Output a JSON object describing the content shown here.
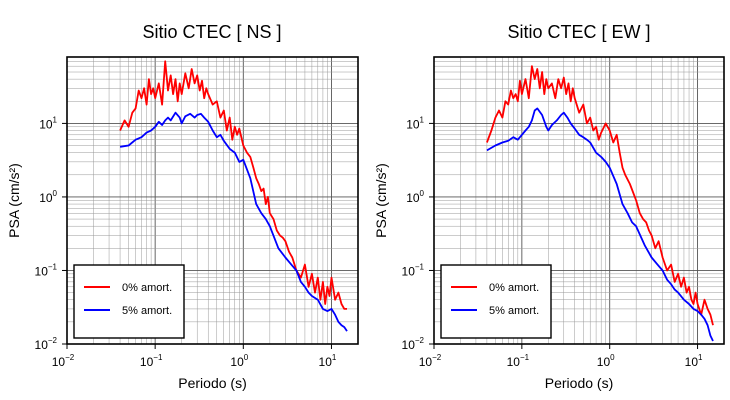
{
  "chart_data": [
    {
      "type": "line",
      "title": "Sitio CTEC [ NS ]",
      "xlabel": "Periodo (s)",
      "ylabel": "PSA (cm/s²)",
      "xscale": "log",
      "yscale": "log",
      "xlim": [
        0.01,
        20
      ],
      "ylim": [
        0.01,
        80
      ],
      "grid": true,
      "legend_position": "bottom-left",
      "xticks": [
        {
          "label": "10",
          "exp": "−2"
        },
        {
          "label": "10",
          "exp": "−1"
        },
        {
          "label": "10",
          "exp": "0"
        },
        {
          "label": "10",
          "exp": "1"
        }
      ],
      "yticks": [
        {
          "label": "10",
          "exp": "−2"
        },
        {
          "label": "10",
          "exp": "−1"
        },
        {
          "label": "10",
          "exp": "0"
        },
        {
          "label": "10",
          "exp": "1"
        }
      ],
      "series": [
        {
          "name": "0% amort.",
          "color": "#ff0000",
          "x": [
            0.04,
            0.045,
            0.05,
            0.055,
            0.06,
            0.065,
            0.07,
            0.075,
            0.08,
            0.085,
            0.09,
            0.095,
            0.1,
            0.11,
            0.12,
            0.13,
            0.14,
            0.15,
            0.16,
            0.17,
            0.18,
            0.19,
            0.2,
            0.22,
            0.24,
            0.26,
            0.28,
            0.3,
            0.32,
            0.34,
            0.36,
            0.38,
            0.4,
            0.45,
            0.5,
            0.55,
            0.6,
            0.65,
            0.7,
            0.75,
            0.8,
            0.85,
            0.9,
            1.0,
            1.1,
            1.2,
            1.3,
            1.4,
            1.5,
            1.6,
            1.7,
            1.8,
            1.9,
            2.0,
            2.2,
            2.4,
            2.6,
            2.8,
            3.0,
            3.3,
            3.6,
            4.0,
            4.5,
            5.0,
            5.5,
            6.0,
            6.5,
            7.0,
            7.5,
            8.0,
            8.5,
            9.0,
            9.5,
            10.0,
            11.0,
            12.0,
            13.0,
            14.0,
            15.0
          ],
          "values": [
            8.0,
            11.0,
            9.0,
            14.0,
            16.0,
            28.0,
            22.0,
            30.0,
            18.0,
            40.0,
            25.0,
            30.0,
            22.0,
            35.0,
            18.0,
            70.0,
            28.0,
            45.0,
            25.0,
            40.0,
            20.0,
            35.0,
            25.0,
            48.0,
            30.0,
            55.0,
            35.0,
            45.0,
            28.0,
            38.0,
            22.0,
            30.0,
            25.0,
            18.0,
            20.0,
            12.0,
            15.0,
            8.0,
            12.0,
            6.0,
            9.0,
            7.0,
            8.5,
            5.0,
            4.0,
            3.5,
            2.5,
            1.8,
            1.5,
            1.2,
            1.3,
            0.8,
            1.0,
            0.6,
            0.5,
            0.35,
            0.3,
            0.28,
            0.25,
            0.18,
            0.15,
            0.1,
            0.08,
            0.12,
            0.06,
            0.09,
            0.05,
            0.08,
            0.04,
            0.07,
            0.035,
            0.06,
            0.045,
            0.08,
            0.04,
            0.05,
            0.035,
            0.03,
            0.03
          ]
        },
        {
          "name": "5% amort.",
          "color": "#0000ff",
          "x": [
            0.04,
            0.05,
            0.06,
            0.07,
            0.08,
            0.09,
            0.1,
            0.11,
            0.12,
            0.13,
            0.14,
            0.15,
            0.17,
            0.19,
            0.2,
            0.22,
            0.25,
            0.28,
            0.3,
            0.33,
            0.36,
            0.4,
            0.45,
            0.5,
            0.55,
            0.6,
            0.7,
            0.8,
            0.9,
            1.0,
            1.2,
            1.4,
            1.6,
            1.8,
            2.0,
            2.5,
            3.0,
            3.5,
            4.0,
            4.5,
            5.0,
            5.5,
            6.0,
            7.0,
            8.0,
            9.0,
            10.0,
            11.0,
            12.0,
            13.0,
            14.0,
            15.0
          ],
          "values": [
            4.8,
            5.0,
            6.0,
            6.5,
            7.5,
            8.0,
            9.0,
            10.5,
            9.5,
            11.0,
            12.0,
            11.0,
            14.0,
            12.0,
            10.0,
            12.5,
            13.5,
            12.0,
            13.0,
            13.5,
            12.0,
            10.5,
            8.0,
            6.5,
            7.0,
            5.8,
            4.5,
            4.0,
            3.0,
            3.2,
            1.8,
            0.8,
            0.6,
            0.5,
            0.4,
            0.2,
            0.15,
            0.12,
            0.1,
            0.07,
            0.06,
            0.05,
            0.045,
            0.04,
            0.03,
            0.028,
            0.03,
            0.025,
            0.02,
            0.018,
            0.017,
            0.015
          ]
        }
      ]
    },
    {
      "type": "line",
      "title": "Sitio CTEC [ EW ]",
      "xlabel": "Periodo (s)",
      "ylabel": "PSA (cm/s²)",
      "xscale": "log",
      "yscale": "log",
      "xlim": [
        0.01,
        20
      ],
      "ylim": [
        0.01,
        80
      ],
      "grid": true,
      "legend_position": "bottom-left",
      "xticks": [
        {
          "label": "10",
          "exp": "−2"
        },
        {
          "label": "10",
          "exp": "−1"
        },
        {
          "label": "10",
          "exp": "0"
        },
        {
          "label": "10",
          "exp": "1"
        }
      ],
      "yticks": [
        {
          "label": "10",
          "exp": "−2"
        },
        {
          "label": "10",
          "exp": "−1"
        },
        {
          "label": "10",
          "exp": "0"
        },
        {
          "label": "10",
          "exp": "1"
        }
      ],
      "series": [
        {
          "name": "0% amort.",
          "color": "#ff0000",
          "x": [
            0.04,
            0.045,
            0.05,
            0.055,
            0.06,
            0.065,
            0.07,
            0.075,
            0.08,
            0.085,
            0.09,
            0.095,
            0.1,
            0.11,
            0.12,
            0.13,
            0.14,
            0.15,
            0.16,
            0.17,
            0.18,
            0.19,
            0.2,
            0.22,
            0.24,
            0.26,
            0.28,
            0.3,
            0.32,
            0.34,
            0.36,
            0.38,
            0.4,
            0.45,
            0.5,
            0.55,
            0.6,
            0.65,
            0.7,
            0.75,
            0.8,
            0.9,
            1.0,
            1.1,
            1.2,
            1.3,
            1.4,
            1.5,
            1.7,
            2.0,
            2.2,
            2.4,
            2.6,
            2.8,
            3.0,
            3.3,
            3.6,
            4.0,
            4.5,
            5.0,
            5.5,
            6.0,
            6.5,
            7.0,
            7.5,
            8.0,
            8.5,
            9.0,
            9.5,
            10.0,
            11.0,
            12.0,
            13.0,
            14.0,
            15.0
          ],
          "values": [
            5.5,
            8.0,
            12.0,
            15.0,
            12.0,
            20.0,
            18.0,
            28.0,
            22.0,
            25.0,
            20.0,
            38.0,
            25.0,
            40.0,
            22.0,
            60.0,
            40.0,
            55.0,
            30.0,
            50.0,
            25.0,
            40.0,
            30.0,
            35.0,
            22.0,
            40.0,
            30.0,
            42.0,
            25.0,
            35.0,
            20.0,
            30.0,
            22.0,
            14.0,
            18.0,
            10.0,
            12.0,
            8.0,
            9.0,
            6.0,
            7.5,
            10.0,
            8.0,
            5.5,
            7.0,
            4.0,
            2.5,
            2.0,
            1.5,
            0.9,
            0.6,
            0.5,
            0.45,
            0.35,
            0.3,
            0.2,
            0.25,
            0.15,
            0.1,
            0.12,
            0.07,
            0.09,
            0.06,
            0.08,
            0.05,
            0.06,
            0.04,
            0.035,
            0.05,
            0.035,
            0.025,
            0.04,
            0.03,
            0.025,
            0.018
          ]
        },
        {
          "name": "5% amort.",
          "color": "#0000ff",
          "x": [
            0.04,
            0.05,
            0.06,
            0.07,
            0.08,
            0.09,
            0.1,
            0.11,
            0.12,
            0.13,
            0.14,
            0.15,
            0.17,
            0.19,
            0.2,
            0.22,
            0.25,
            0.28,
            0.3,
            0.33,
            0.36,
            0.4,
            0.45,
            0.5,
            0.55,
            0.6,
            0.7,
            0.8,
            0.9,
            1.0,
            1.2,
            1.4,
            1.6,
            1.8,
            2.0,
            2.5,
            3.0,
            3.5,
            4.0,
            4.5,
            5.0,
            5.5,
            6.0,
            7.0,
            8.0,
            9.0,
            10.0,
            11.0,
            12.0,
            13.0,
            14.0,
            15.0
          ],
          "values": [
            4.3,
            5.0,
            5.5,
            5.8,
            6.5,
            6.0,
            7.0,
            8.0,
            9.0,
            11.0,
            15.0,
            16.0,
            13.0,
            9.0,
            8.0,
            9.5,
            11.0,
            13.0,
            14.0,
            12.0,
            10.0,
            8.5,
            7.0,
            6.5,
            6.0,
            5.5,
            4.0,
            3.5,
            3.0,
            2.5,
            1.5,
            0.8,
            0.6,
            0.45,
            0.4,
            0.22,
            0.15,
            0.12,
            0.1,
            0.075,
            0.065,
            0.055,
            0.05,
            0.04,
            0.035,
            0.03,
            0.028,
            0.025,
            0.022,
            0.018,
            0.013,
            0.011
          ]
        }
      ]
    }
  ]
}
